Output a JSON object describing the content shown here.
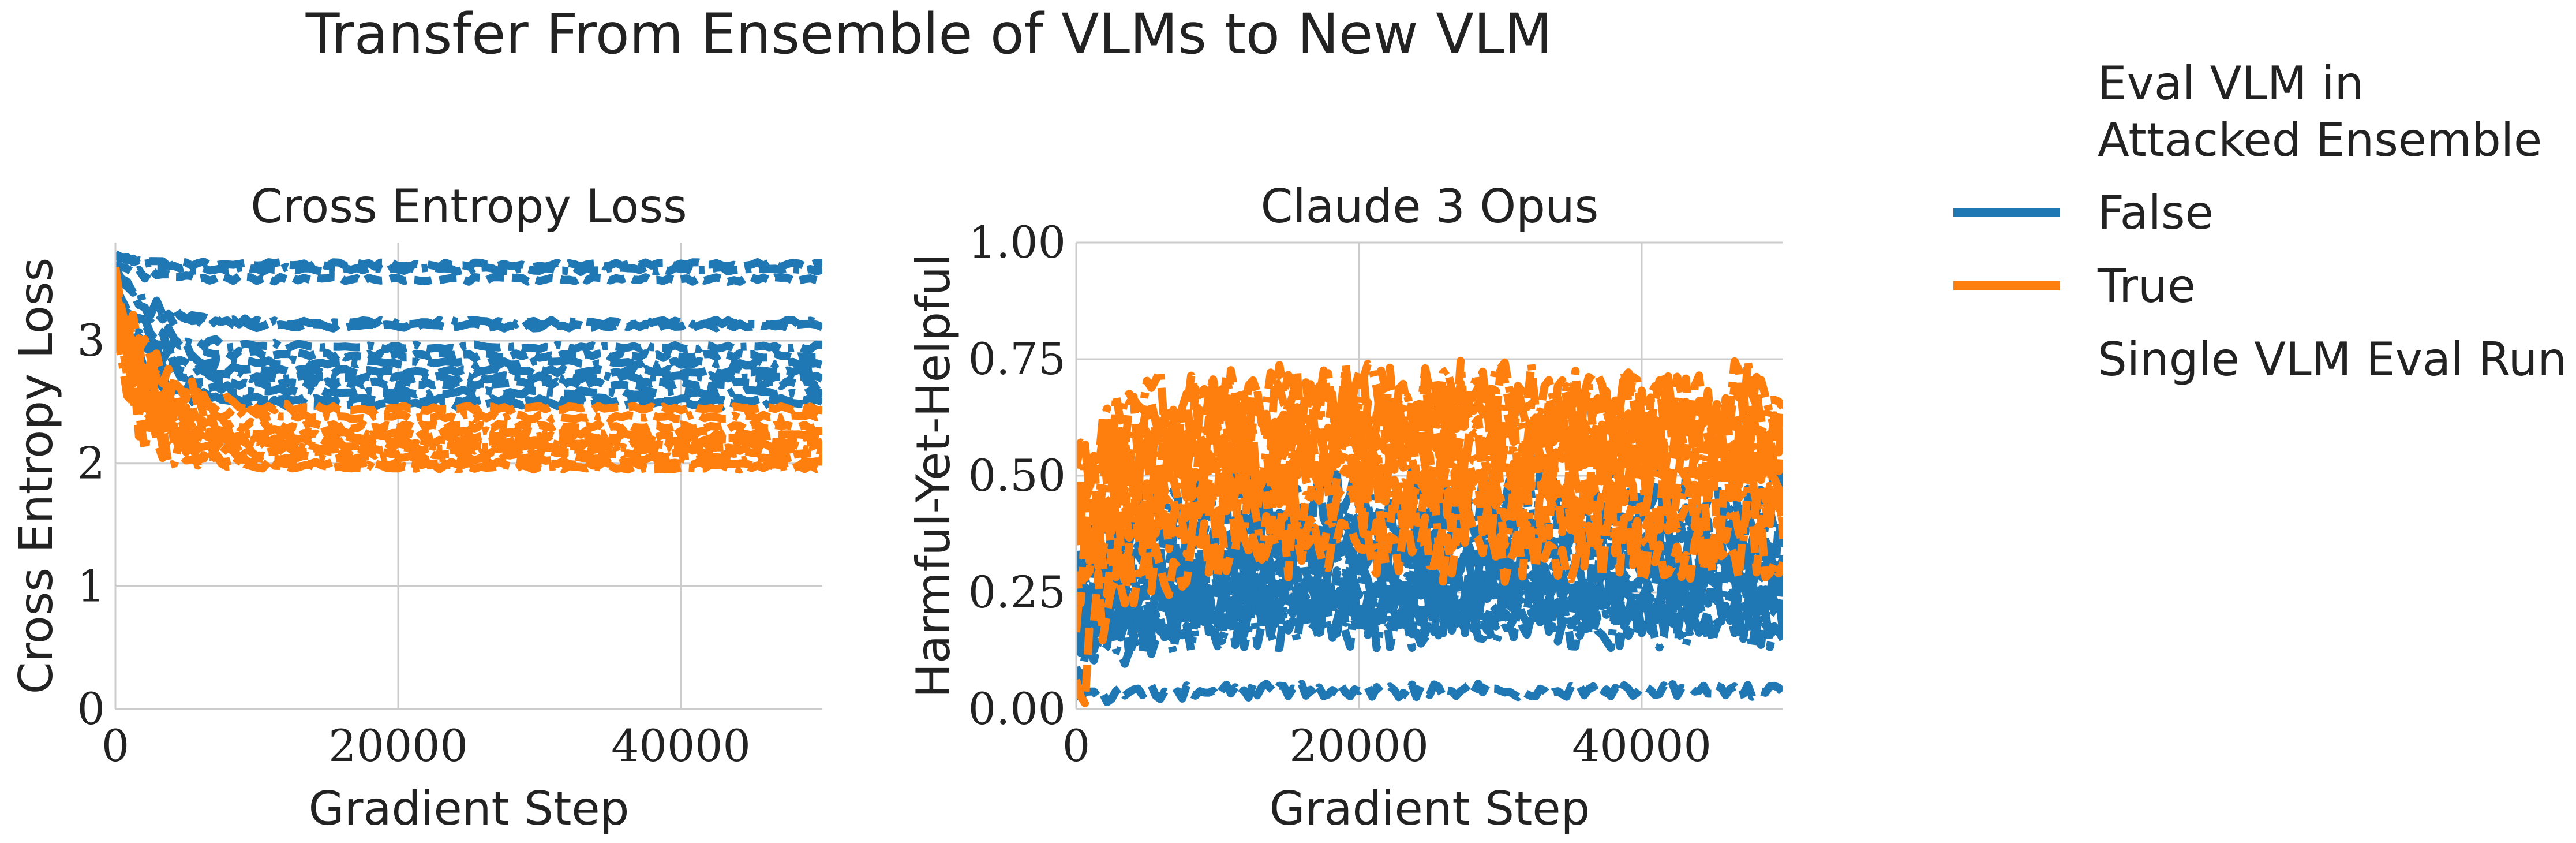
{
  "figure": {
    "suptitle": "Transfer From Ensemble of VLMs to New VLM",
    "legend": {
      "title_line1": "Eval VLM in",
      "title_line2": "Attacked Ensemble",
      "entries": [
        {
          "label": "False",
          "color": "#1f77b4"
        },
        {
          "label": "True",
          "color": "#ff7f0e"
        },
        {
          "label": "Single VLM Eval Run",
          "color": ""
        }
      ]
    }
  },
  "chart_data": [
    {
      "type": "line",
      "title": "Cross Entropy Loss",
      "xlabel": "Gradient Step",
      "ylabel": "Cross Entropy Loss",
      "xlim": [
        0,
        50000
      ],
      "ylim": [
        0,
        3.8
      ],
      "xticks": [
        0,
        20000,
        40000
      ],
      "xtick_labels": [
        "0",
        "20000",
        "40000"
      ],
      "yticks": [
        0,
        1,
        2,
        3
      ],
      "ytick_labels": [
        "0",
        "1",
        "2",
        "3"
      ],
      "grid": true,
      "line_style": "dashed",
      "series_groups": [
        {
          "legend_label": "False",
          "color": "#1f77b4",
          "runs": [
            {
              "start": 3.7,
              "end": 3.62
            },
            {
              "start": 3.7,
              "end": 3.58
            },
            {
              "start": 3.65,
              "end": 3.5
            },
            {
              "start": 3.6,
              "end": 3.15
            },
            {
              "start": 3.55,
              "end": 3.12
            },
            {
              "start": 3.45,
              "end": 2.95
            },
            {
              "start": 3.4,
              "end": 2.88
            },
            {
              "start": 3.35,
              "end": 2.82
            },
            {
              "start": 3.3,
              "end": 2.75
            },
            {
              "start": 3.3,
              "end": 2.7
            },
            {
              "start": 3.25,
              "end": 2.65
            },
            {
              "start": 3.2,
              "end": 2.58
            },
            {
              "start": 3.2,
              "end": 2.52
            },
            {
              "start": 3.15,
              "end": 2.48
            }
          ]
        },
        {
          "legend_label": "True",
          "color": "#ff7f0e",
          "runs": [
            {
              "start": 3.6,
              "end": 2.45
            },
            {
              "start": 3.55,
              "end": 2.38
            },
            {
              "start": 3.5,
              "end": 2.3
            },
            {
              "start": 3.45,
              "end": 2.25
            },
            {
              "start": 3.4,
              "end": 2.18
            },
            {
              "start": 3.35,
              "end": 2.12
            },
            {
              "start": 3.3,
              "end": 2.08
            },
            {
              "start": 3.25,
              "end": 2.04
            },
            {
              "start": 3.2,
              "end": 2.0
            },
            {
              "start": 3.1,
              "end": 1.97
            },
            {
              "start": 3.5,
              "end": 2.22
            },
            {
              "start": 3.4,
              "end": 2.15
            }
          ]
        }
      ]
    },
    {
      "type": "line",
      "title": "Claude 3 Opus",
      "xlabel": "Gradient Step",
      "ylabel": "Harmful-Yet-Helpful",
      "xlim": [
        0,
        50000
      ],
      "ylim": [
        0,
        1.0
      ],
      "xticks": [
        0,
        20000,
        40000
      ],
      "xtick_labels": [
        "0",
        "20000",
        "40000"
      ],
      "yticks": [
        0,
        0.25,
        0.5,
        0.75,
        1.0
      ],
      "ytick_labels": [
        "0.00",
        "0.25",
        "0.50",
        "0.75",
        "1.00"
      ],
      "grid": true,
      "line_style": "dashed",
      "series_groups": [
        {
          "legend_label": "False",
          "color": "#1f77b4",
          "runs": [
            {
              "start": 0.02,
              "end": 0.04,
              "noise": 0.015
            },
            {
              "start": 0.1,
              "end": 0.18,
              "noise": 0.05
            },
            {
              "start": 0.12,
              "end": 0.2,
              "noise": 0.05
            },
            {
              "start": 0.14,
              "end": 0.22,
              "noise": 0.06
            },
            {
              "start": 0.15,
              "end": 0.24,
              "noise": 0.06
            },
            {
              "start": 0.16,
              "end": 0.26,
              "noise": 0.06
            },
            {
              "start": 0.18,
              "end": 0.28,
              "noise": 0.07
            },
            {
              "start": 0.2,
              "end": 0.3,
              "noise": 0.07
            },
            {
              "start": 0.22,
              "end": 0.33,
              "noise": 0.07
            },
            {
              "start": 0.24,
              "end": 0.36,
              "noise": 0.08
            },
            {
              "start": 0.26,
              "end": 0.4,
              "noise": 0.08
            },
            {
              "start": 0.28,
              "end": 0.44,
              "noise": 0.08
            }
          ]
        },
        {
          "legend_label": "True",
          "color": "#ff7f0e",
          "runs": [
            {
              "start": 0.05,
              "end": 0.35,
              "noise": 0.08
            },
            {
              "start": 0.25,
              "end": 0.42,
              "noise": 0.09
            },
            {
              "start": 0.3,
              "end": 0.46,
              "noise": 0.09
            },
            {
              "start": 0.35,
              "end": 0.5,
              "noise": 0.09
            },
            {
              "start": 0.38,
              "end": 0.53,
              "noise": 0.09
            },
            {
              "start": 0.4,
              "end": 0.56,
              "noise": 0.09
            },
            {
              "start": 0.42,
              "end": 0.58,
              "noise": 0.09
            },
            {
              "start": 0.45,
              "end": 0.61,
              "noise": 0.09
            },
            {
              "start": 0.48,
              "end": 0.64,
              "noise": 0.09
            },
            {
              "start": 0.5,
              "end": 0.67,
              "noise": 0.08
            }
          ]
        }
      ]
    }
  ]
}
